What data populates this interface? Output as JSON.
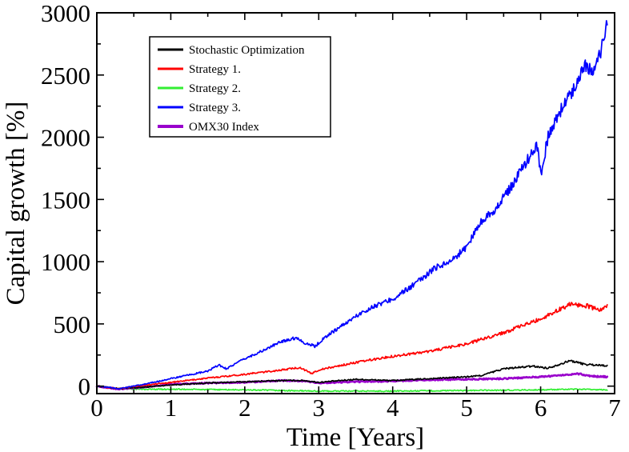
{
  "chart_data": {
    "type": "line",
    "title": "",
    "xlabel": "Time [Years]",
    "ylabel": "Capital growth [%]",
    "xlim": [
      0,
      7
    ],
    "ylim": [
      -60,
      3000
    ],
    "xticks": [
      "0",
      "1",
      "2",
      "3",
      "4",
      "5",
      "6",
      "7"
    ],
    "yticks": [
      "0",
      "500",
      "1000",
      "1500",
      "2000",
      "2500",
      "3000"
    ],
    "grid": false,
    "legend_position": "top-left",
    "series": [
      {
        "name": "Stochastic Optimization",
        "color": "#000000",
        "x": [
          0,
          0.3,
          0.6,
          1.0,
          1.5,
          2.0,
          2.5,
          2.8,
          3.0,
          3.5,
          4.0,
          4.5,
          5.0,
          5.2,
          5.5,
          5.9,
          6.1,
          6.4,
          6.6,
          6.9
        ],
        "y": [
          0,
          -20,
          -10,
          10,
          25,
          35,
          45,
          45,
          30,
          55,
          45,
          60,
          75,
          85,
          140,
          160,
          145,
          205,
          175,
          165
        ]
      },
      {
        "name": "Strategy 1.",
        "color": "#ff0000",
        "x": [
          0,
          0.3,
          0.6,
          1.0,
          1.5,
          2.0,
          2.5,
          2.75,
          2.9,
          3.0,
          3.5,
          4.0,
          4.5,
          5.0,
          5.5,
          6.0,
          6.4,
          6.6,
          6.8,
          6.9
        ],
        "y": [
          0,
          -20,
          5,
          30,
          65,
          95,
          130,
          150,
          100,
          130,
          190,
          240,
          280,
          340,
          430,
          540,
          660,
          650,
          610,
          640
        ]
      },
      {
        "name": "Strategy 2.",
        "color": "#33ee33",
        "x": [
          0,
          0.3,
          0.6,
          1.0,
          2.0,
          3.0,
          4.0,
          5.0,
          6.0,
          6.5,
          6.9
        ],
        "y": [
          0,
          -20,
          -25,
          -25,
          -30,
          -40,
          -40,
          -35,
          -30,
          -25,
          -30
        ]
      },
      {
        "name": "Strategy 3.",
        "color": "#0000ff",
        "x": [
          0,
          0.3,
          0.6,
          1.0,
          1.5,
          1.65,
          1.75,
          2.0,
          2.3,
          2.5,
          2.7,
          2.8,
          2.95,
          3.1,
          3.3,
          3.5,
          3.7,
          4.0,
          4.3,
          4.6,
          4.8,
          5.0,
          5.2,
          5.4,
          5.6,
          5.8,
          5.95,
          6.0,
          6.1,
          6.3,
          6.5,
          6.6,
          6.7,
          6.8,
          6.9
        ],
        "y": [
          0,
          -20,
          10,
          60,
          120,
          170,
          140,
          220,
          300,
          360,
          390,
          350,
          320,
          400,
          480,
          560,
          630,
          700,
          820,
          960,
          1010,
          1120,
          1330,
          1430,
          1600,
          1800,
          1940,
          1700,
          2000,
          2250,
          2450,
          2600,
          2500,
          2650,
          2920
        ]
      },
      {
        "name": "OMX30 Index",
        "color": "#9900cc",
        "x": [
          0,
          0.3,
          0.6,
          1.0,
          1.5,
          2.0,
          2.5,
          2.8,
          3.0,
          3.5,
          4.0,
          4.5,
          5.0,
          5.5,
          6.0,
          6.5,
          6.7,
          6.9
        ],
        "y": [
          0,
          -25,
          -10,
          15,
          25,
          30,
          45,
          40,
          25,
          35,
          40,
          50,
          55,
          60,
          75,
          100,
          80,
          75
        ]
      }
    ]
  }
}
